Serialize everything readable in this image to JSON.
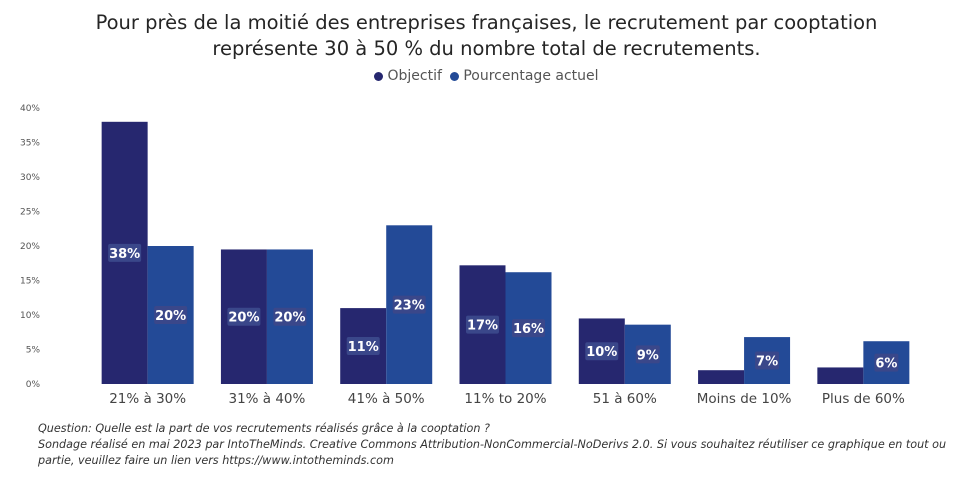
{
  "title_line1": "Pour près de la moitié des entreprises françaises, le recrutement par cooptation",
  "title_line2": "représente 30 à 50 % du nombre total de recrutements.",
  "footnote_question": "Question: Quelle est la part de vos recrutements réalisés grâce à la cooptation ?",
  "footnote_source": "Sondage réalisé en mai 2023 par IntoTheMinds. Creative Commons Attribution-NonCommercial-NoDerivs 2.0. Si vous souhaitez réutiliser ce graphique en tout ou partie, veuillez faire un lien vers https://www.intotheminds.com",
  "colors": {
    "objectif": "#26276f",
    "actuel": "#234a97",
    "label_bg": "#3a478a"
  },
  "chart_data": {
    "type": "bar",
    "title": "Pour près de la moitié des entreprises françaises, le recrutement par cooptation représente 30 à 50 % du nombre total de recrutements.",
    "categories": [
      "21% à 30%",
      "31% à 40%",
      "41% à 50%",
      "11% to 20%",
      "51 à 60%",
      "Moins de 10%",
      "Plus de 60%"
    ],
    "series": [
      {
        "name": "Objectif",
        "values": [
          38,
          19.5,
          11,
          17.2,
          9.5,
          2,
          2.4
        ],
        "labels": [
          "38%",
          "20%",
          "11%",
          "17%",
          "10%",
          "",
          ""
        ]
      },
      {
        "name": "Pourcentage actuel",
        "values": [
          20,
          19.5,
          23,
          16.2,
          8.6,
          6.8,
          6.2
        ],
        "labels": [
          "20%",
          "20%",
          "23%",
          "16%",
          "9%",
          "7%",
          "6%"
        ]
      }
    ],
    "yticks": [
      "0%",
      "5%",
      "10%",
      "15%",
      "20%",
      "25%",
      "30%",
      "35%",
      "40%"
    ],
    "ylim": [
      0,
      40
    ],
    "legend_position": "top-center",
    "grid": false
  }
}
